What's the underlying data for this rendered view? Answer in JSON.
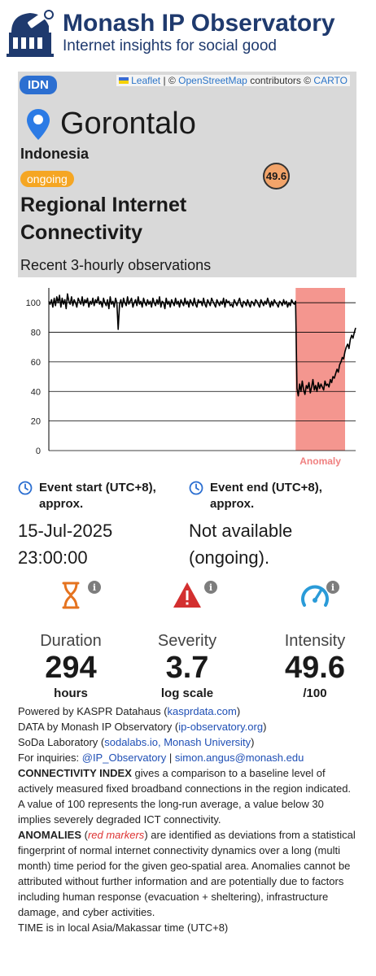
{
  "header": {
    "title": "Monash IP Observatory",
    "subtitle": "Internet insights for social good"
  },
  "map": {
    "attribution_leaflet": "Leaflet",
    "attribution_sep": "|",
    "attribution_copy1": "©",
    "attribution_osm": "OpenStreetMap",
    "attribution_contrib": "contributors ©",
    "attribution_carto": "CARTO",
    "country_code": "IDN",
    "city": "Gorontalo",
    "country": "Indonesia",
    "status": "ongoing",
    "score": "49.6",
    "metric_title": "Regional Internet Connectivity",
    "metric_subtitle": "Recent 3-hourly observations"
  },
  "chart_data": {
    "type": "line",
    "title": "",
    "xlabel": "",
    "ylabel": "",
    "ylim": [
      0,
      110
    ],
    "yticks": [
      0,
      20,
      40,
      60,
      80,
      100
    ],
    "series": [
      {
        "values": [
          101,
          99,
          102,
          97,
          103,
          98,
          104,
          100,
          105,
          97,
          103,
          99,
          102,
          96,
          106,
          101,
          99,
          104,
          98,
          102,
          100,
          97,
          103,
          101,
          99,
          104,
          98,
          102,
          100,
          103,
          97,
          101,
          99,
          103,
          98,
          102,
          100,
          104,
          99,
          101,
          97,
          103,
          100,
          98,
          102,
          96,
          104,
          99,
          101,
          97,
          103,
          100,
          82,
          99,
          102,
          97,
          103,
          100,
          98,
          104,
          99,
          101,
          103,
          97,
          100,
          102,
          98,
          104,
          99,
          101,
          97,
          103,
          100,
          98,
          102,
          99,
          101,
          97,
          103,
          100,
          98,
          102,
          99,
          104,
          97,
          101,
          100,
          96,
          103,
          99,
          101,
          97,
          102,
          100,
          98,
          103,
          99,
          101,
          97,
          102,
          100,
          98,
          103,
          99,
          101,
          97,
          102,
          100,
          98,
          103,
          99,
          97,
          102,
          100,
          101,
          98,
          103,
          99,
          97,
          102,
          100,
          98,
          103,
          101,
          99,
          97,
          102,
          100,
          98,
          101,
          99,
          103,
          97,
          102,
          100,
          101,
          98,
          99,
          97,
          102,
          100,
          98,
          101,
          103,
          99,
          97,
          101,
          100,
          98,
          102,
          99,
          97,
          101,
          100,
          98,
          102,
          101,
          99,
          97,
          102,
          100,
          98,
          101,
          99,
          103,
          100,
          97,
          101,
          98,
          102,
          100,
          99,
          97,
          101,
          100,
          98,
          102,
          99,
          101,
          97,
          100,
          98,
          102,
          100,
          99,
          101,
          42,
          37,
          45,
          40,
          47,
          41,
          38,
          44,
          42,
          46,
          39,
          43,
          48,
          41,
          44,
          40,
          46,
          42,
          45,
          43,
          41,
          47,
          44,
          45,
          43,
          48,
          46,
          50,
          49,
          52,
          55,
          53,
          58,
          60,
          63,
          62,
          67,
          70,
          72,
          69,
          75,
          78,
          76,
          80,
          83
        ]
      }
    ],
    "anomaly_start_index": 185,
    "anomaly_label": "Anomaly",
    "anomaly_color": "#f4968f"
  },
  "events": {
    "start_label": "Event start (UTC+8), approx.",
    "start_date": "15-Jul-2025",
    "start_time": "23:00:00",
    "end_label": "Event end (UTC+8), approx.",
    "end_value_line1": "Not available",
    "end_value_line2": "(ongoing)."
  },
  "stats": {
    "duration": {
      "label": "Duration",
      "value": "294",
      "unit": "hours",
      "icon": "hourglass-icon",
      "color": "#e5731f"
    },
    "severity": {
      "label": "Severity",
      "value": "3.7",
      "unit": "log scale",
      "icon": "warning-icon",
      "color": "#d32f2f"
    },
    "intensity": {
      "label": "Intensity",
      "value": "49.6",
      "unit": "/100",
      "icon": "gauge-icon",
      "color": "#2a9bd8"
    },
    "info_glyph": "i"
  },
  "footer": {
    "powered_prefix": "Powered by KASPR Datahaus (",
    "powered_link": "kasprdata.com",
    "powered_suffix": ")",
    "data_prefix": "DATA by Monash IP Observatory (",
    "data_link": "ip-observatory.org",
    "data_suffix": ")",
    "soda_prefix": "SoDa Laboratory (",
    "soda_link": "sodalabs.io, Monash University",
    "soda_suffix": ")",
    "inq_prefix": "For inquiries: ",
    "inq_link1": "@IP_Observatory",
    "inq_sep": " | ",
    "inq_link2": "simon.angus@monash.edu",
    "ci_title": "CONNECTIVITY INDEX",
    "ci_text": " gives a comparison to a baseline level of actively measured fixed broadband connections in the region indicated. A value of 100 represents the long-run average, a value below 30 implies severely degraded ICT connectivity.",
    "an_title": "ANOMALIES",
    "an_open": " (",
    "an_red": "red markers",
    "an_text": ") are identified as deviations from a statistical fingerprint of normal internet connectivity dynamics over a long (multi month) time period for the given geo-spatial area. Anomalies cannot be attributed without further information and are potentially due to factors including human response (evacuation + sheltering), infrastructure damage, and cyber activities.",
    "time_note": "TIME is in local Asia/Makassar time (UTC+8)"
  }
}
